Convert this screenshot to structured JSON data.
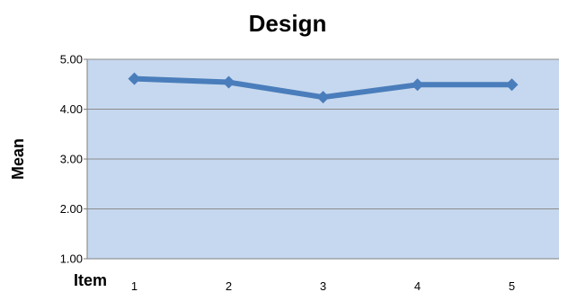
{
  "chart_data": {
    "type": "line",
    "title": "Design",
    "xlabel": "Item",
    "ylabel": "Mean",
    "categories": [
      "1",
      "2",
      "3",
      "4",
      "5"
    ],
    "series": [
      {
        "values": [
          4.61,
          4.54,
          4.24,
          4.49,
          4.49
        ]
      }
    ],
    "ylim": [
      1,
      5
    ],
    "y_ticks": [
      "1.00",
      "2.00",
      "3.00",
      "4.00",
      "5.00"
    ],
    "grid": true,
    "legend": "none",
    "marker": "diamond",
    "colors": {
      "plot_area": "#c6d8ef",
      "line": "#4a7dbb",
      "gridline": "#8c8c8c",
      "axis": "#7f7f7f"
    }
  }
}
